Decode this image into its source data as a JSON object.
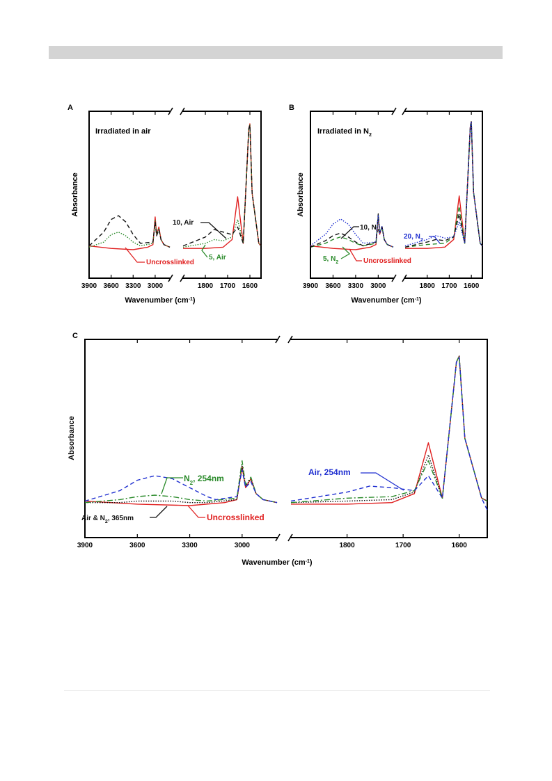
{
  "chart_data": [
    {
      "panel": "A",
      "type": "line",
      "title": "Irradiated in air",
      "xlabel": "Wavenumber (cm",
      "xlabel_sup": "-1",
      "xlabel_end": ")",
      "ylabel": "Absorbance",
      "x_axis_break": true,
      "xlim_left": [
        3900,
        2800
      ],
      "xlim_right": [
        1900,
        1550
      ],
      "ticks_left": [
        "3900",
        "3600",
        "3300",
        "3000"
      ],
      "ticks_right": [
        "1800",
        "1700",
        "1600"
      ],
      "series": [
        {
          "name": "Uncrosslinked",
          "color": "#e02020",
          "dash": "solid",
          "x": [
            3900,
            3600,
            3300,
            3100,
            3030,
            3000,
            2980,
            2950,
            2920,
            2880,
            2800,
            1900,
            1800,
            1720,
            1680,
            1655,
            1630,
            1605,
            1600,
            1590,
            1560,
            1550
          ],
          "y": [
            0.03,
            0.01,
            0.0,
            0.02,
            0.04,
            0.26,
            0.12,
            0.18,
            0.08,
            0.04,
            0.02,
            0.01,
            0.01,
            0.02,
            0.08,
            0.42,
            0.05,
            0.96,
            1.0,
            0.45,
            0.05,
            0.03
          ]
        },
        {
          "name": "5, Air",
          "color": "#2a8a2a",
          "dash": "dotted",
          "x": [
            3900,
            3700,
            3600,
            3500,
            3400,
            3300,
            3200,
            3030,
            3000,
            2980,
            2950,
            2920,
            2880,
            2800,
            1900,
            1800,
            1760,
            1720,
            1680,
            1655,
            1630,
            1605,
            1600,
            1590,
            1560,
            1550
          ],
          "y": [
            0.02,
            0.06,
            0.12,
            0.14,
            0.11,
            0.06,
            0.03,
            0.05,
            0.24,
            0.12,
            0.17,
            0.08,
            0.04,
            0.02,
            0.02,
            0.05,
            0.08,
            0.07,
            0.1,
            0.24,
            0.05,
            0.96,
            0.99,
            0.45,
            0.05,
            0.03
          ]
        },
        {
          "name": "10, Air",
          "color": "#111111",
          "dash": "dashed",
          "x": [
            3900,
            3700,
            3600,
            3500,
            3400,
            3300,
            3200,
            3030,
            3000,
            2980,
            2950,
            2920,
            2880,
            2800,
            1900,
            1800,
            1760,
            1720,
            1680,
            1655,
            1630,
            1605,
            1600,
            1590,
            1560,
            1550
          ],
          "y": [
            0.03,
            0.14,
            0.24,
            0.27,
            0.22,
            0.12,
            0.05,
            0.06,
            0.22,
            0.11,
            0.16,
            0.08,
            0.04,
            0.02,
            0.03,
            0.1,
            0.16,
            0.14,
            0.12,
            0.18,
            0.05,
            0.96,
            0.99,
            0.45,
            0.05,
            0.03
          ]
        }
      ],
      "annotations": [
        "10, Air",
        "5, Air",
        "Uncrosslinked"
      ]
    },
    {
      "panel": "B",
      "type": "line",
      "title_main": "Irradiated in N",
      "title_sub": "2",
      "xlabel": "Wavenumber (cm",
      "xlabel_sup": "-1",
      "xlabel_end": ")",
      "ylabel": "Absorbance",
      "x_axis_break": true,
      "xlim_left": [
        3900,
        2800
      ],
      "xlim_right": [
        1900,
        1550
      ],
      "ticks_left": [
        "3900",
        "3600",
        "3300",
        "3000"
      ],
      "ticks_right": [
        "1800",
        "1700",
        "1600"
      ],
      "series": [
        {
          "name": "Uncrosslinked",
          "color": "#e02020",
          "dash": "solid",
          "x": [
            3900,
            3600,
            3300,
            3100,
            3030,
            3000,
            2980,
            2950,
            2920,
            2880,
            2800,
            1900,
            1800,
            1720,
            1680,
            1655,
            1630,
            1605,
            1600,
            1590,
            1560,
            1550
          ],
          "y": [
            0.03,
            0.01,
            0.0,
            0.02,
            0.04,
            0.26,
            0.12,
            0.18,
            0.08,
            0.04,
            0.02,
            0.01,
            0.01,
            0.02,
            0.08,
            0.42,
            0.05,
            0.96,
            1.0,
            0.45,
            0.05,
            0.03
          ]
        },
        {
          "name": "5, N2",
          "color": "#2a8a2a",
          "dash": "dashed",
          "x": [
            3900,
            3700,
            3600,
            3500,
            3400,
            3300,
            3200,
            3030,
            3000,
            2980,
            2950,
            2920,
            2880,
            2800,
            1900,
            1800,
            1720,
            1680,
            1655,
            1630,
            1605,
            1600,
            1590,
            1560,
            1550
          ],
          "y": [
            0.02,
            0.05,
            0.08,
            0.1,
            0.08,
            0.05,
            0.03,
            0.05,
            0.27,
            0.13,
            0.18,
            0.08,
            0.04,
            0.02,
            0.02,
            0.04,
            0.05,
            0.1,
            0.34,
            0.05,
            0.96,
            1.0,
            0.45,
            0.05,
            0.03
          ]
        },
        {
          "name": "10, N2",
          "color": "#111111",
          "dash": "dashed",
          "x": [
            3900,
            3700,
            3600,
            3500,
            3400,
            3300,
            3200,
            3030,
            3000,
            2980,
            2950,
            2920,
            2880,
            2800,
            1900,
            1800,
            1760,
            1720,
            1680,
            1655,
            1630,
            1605,
            1600,
            1590,
            1560,
            1550
          ],
          "y": [
            0.02,
            0.07,
            0.11,
            0.13,
            0.1,
            0.06,
            0.03,
            0.06,
            0.28,
            0.13,
            0.18,
            0.08,
            0.04,
            0.02,
            0.02,
            0.06,
            0.08,
            0.07,
            0.1,
            0.28,
            0.05,
            0.96,
            1.0,
            0.45,
            0.05,
            0.03
          ]
        },
        {
          "name": "20, N2",
          "color": "#1f2fd0",
          "dash": "dotted",
          "x": [
            3900,
            3700,
            3600,
            3500,
            3400,
            3300,
            3200,
            3030,
            3000,
            2980,
            2950,
            2920,
            2880,
            2800,
            1900,
            1800,
            1760,
            1720,
            1680,
            1655,
            1630,
            1605,
            1600,
            1590,
            1560,
            1550
          ],
          "y": [
            0.03,
            0.12,
            0.2,
            0.24,
            0.2,
            0.12,
            0.05,
            0.06,
            0.27,
            0.13,
            0.18,
            0.08,
            0.04,
            0.02,
            0.03,
            0.08,
            0.11,
            0.09,
            0.1,
            0.22,
            0.05,
            0.96,
            1.0,
            0.45,
            0.05,
            0.03
          ]
        }
      ],
      "annotations": {
        "a1": "10, N",
        "a1_sub": "2",
        "a2": "20, N",
        "a2_sub": "2",
        "a3": "5, N",
        "a3_sub": "2",
        "a4": "Uncrosslinked"
      }
    },
    {
      "panel": "C",
      "type": "line",
      "xlabel": "Wavenumber (cm",
      "xlabel_sup": "-1",
      "xlabel_end": ")",
      "ylabel": "Absorbance",
      "x_axis_break": true,
      "xlim_left": [
        3900,
        2800
      ],
      "xlim_right": [
        1900,
        1550
      ],
      "ticks_left": [
        "3900",
        "3600",
        "3300",
        "3000"
      ],
      "ticks_right": [
        "1800",
        "1700",
        "1600"
      ],
      "series": [
        {
          "name": "Uncrosslinked",
          "color": "#e02020",
          "dash": "solid",
          "x": [
            3900,
            3600,
            3300,
            3100,
            3030,
            3000,
            2980,
            2950,
            2920,
            2880,
            2800,
            1900,
            1800,
            1720,
            1680,
            1655,
            1630,
            1605,
            1600,
            1590,
            1560,
            1550
          ],
          "y": [
            0.03,
            0.01,
            0.0,
            0.02,
            0.04,
            0.26,
            0.12,
            0.18,
            0.08,
            0.04,
            0.02,
            0.01,
            0.01,
            0.02,
            0.08,
            0.42,
            0.05,
            0.96,
            1.0,
            0.45,
            0.05,
            0.03
          ]
        },
        {
          "name": "Air & N2, 365nm",
          "color": "#111111",
          "dash": "dotted",
          "x": [
            3900,
            3700,
            3600,
            3500,
            3400,
            3300,
            3200,
            3030,
            3000,
            2980,
            2950,
            2920,
            2880,
            2800,
            1900,
            1800,
            1720,
            1680,
            1655,
            1630,
            1605,
            1600,
            1590,
            1560,
            1550
          ],
          "y": [
            0.02,
            0.02,
            0.03,
            0.03,
            0.03,
            0.02,
            0.02,
            0.04,
            0.27,
            0.13,
            0.18,
            0.08,
            0.04,
            0.02,
            0.02,
            0.03,
            0.04,
            0.09,
            0.34,
            0.05,
            0.96,
            1.0,
            0.45,
            0.05,
            0.03
          ]
        },
        {
          "name": "N2, 254nm",
          "color": "#2a8a2a",
          "dash": "dashdot",
          "x": [
            3900,
            3700,
            3600,
            3500,
            3400,
            3300,
            3200,
            3030,
            3000,
            2980,
            2950,
            2920,
            2880,
            2800,
            1900,
            1800,
            1720,
            1680,
            1655,
            1630,
            1605,
            1600,
            1590,
            1560,
            1550
          ],
          "y": [
            0.02,
            0.04,
            0.06,
            0.07,
            0.06,
            0.04,
            0.03,
            0.05,
            0.3,
            0.14,
            0.19,
            0.08,
            0.04,
            0.02,
            0.02,
            0.05,
            0.06,
            0.1,
            0.3,
            0.05,
            0.96,
            1.0,
            0.45,
            0.05,
            0.03
          ]
        },
        {
          "name": "Air, 254nm",
          "color": "#1f2fd0",
          "dash": "dashed",
          "x": [
            3900,
            3700,
            3600,
            3500,
            3400,
            3300,
            3200,
            3150,
            3030,
            3000,
            2980,
            2950,
            2920,
            2880,
            2800,
            1900,
            1800,
            1760,
            1720,
            1680,
            1655,
            1630,
            1605,
            1600,
            1590,
            1560,
            1550
          ],
          "y": [
            0.03,
            0.1,
            0.17,
            0.2,
            0.18,
            0.12,
            0.06,
            0.04,
            0.06,
            0.24,
            0.12,
            0.16,
            0.08,
            0.04,
            0.02,
            0.03,
            0.09,
            0.13,
            0.12,
            0.1,
            0.2,
            0.05,
            0.96,
            0.99,
            0.45,
            0.05,
            -0.03
          ]
        }
      ],
      "annotations": {
        "a1_main": "N",
        "a1_sub": "2",
        "a1_end": ", 254nm",
        "a2": "Air, 254nm",
        "a3_main": "Air & N",
        "a3_sub": "2",
        "a3_end": ", 365nm",
        "a4": "Uncrosslinked"
      }
    }
  ]
}
